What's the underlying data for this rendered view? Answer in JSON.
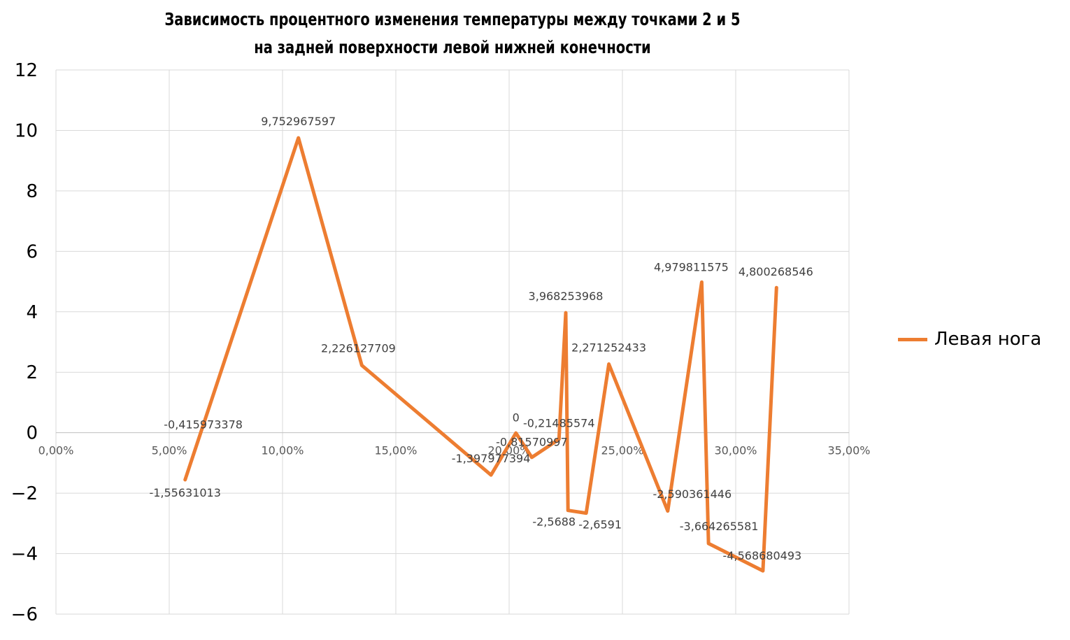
{
  "chart_data": {
    "type": "line",
    "title": "Зависимость процентного изменения температуры между точками 2 и 5\nна задней поверхности левой нижней конечности",
    "title_lines": [
      "Зависимость процентного изменения температуры между точками 2 и 5",
      "на задней поверхности левой нижней конечности"
    ],
    "xlabel": "",
    "ylabel": "",
    "xlim": [
      0,
      0.35
    ],
    "ylim": [
      -6,
      12
    ],
    "x_ticks": [
      "0,00%",
      "5,00%",
      "10,00%",
      "15,00%",
      "20,00%",
      "25,00%",
      "30,00%",
      "35,00%"
    ],
    "y_ticks": [
      "12",
      "10",
      "8",
      "6",
      "4",
      "2",
      "0",
      "−2",
      "−4",
      "−6"
    ],
    "grid": true,
    "legend_position": "right",
    "series": [
      {
        "name": "Левая нога",
        "color": "#ED7D31",
        "x": [
          0.057,
          0.107,
          0.135,
          0.192,
          0.203,
          0.21,
          0.222,
          0.225,
          0.226,
          0.234,
          0.244,
          0.27,
          0.285,
          0.288,
          0.312,
          0.318
        ],
        "y": [
          -1.55631013,
          9.752967597,
          2.226127709,
          -1.397977394,
          -0.01,
          -0.81570997,
          -0.21485574,
          3.968253968,
          -2.5688,
          -2.6591,
          2.271252433,
          -2.590361446,
          4.979811575,
          -3.664265581,
          -4.568680493,
          4.800268546
        ],
        "labels": [
          "-1,55631013",
          "9,752967597",
          "2,226127709",
          "-1,397977394",
          "0",
          "-0,81570997",
          "-0,21485574",
          "3,968253968",
          "-2,5688",
          "-2,6591",
          "2,271252433",
          "-2,590361446",
          "4,979811575",
          "-3,664265581",
          "-4,568680493",
          "4,800268546"
        ]
      }
    ],
    "extra_labels": [
      "-0,415973378"
    ]
  },
  "legend": {
    "label": "Левая нога"
  }
}
